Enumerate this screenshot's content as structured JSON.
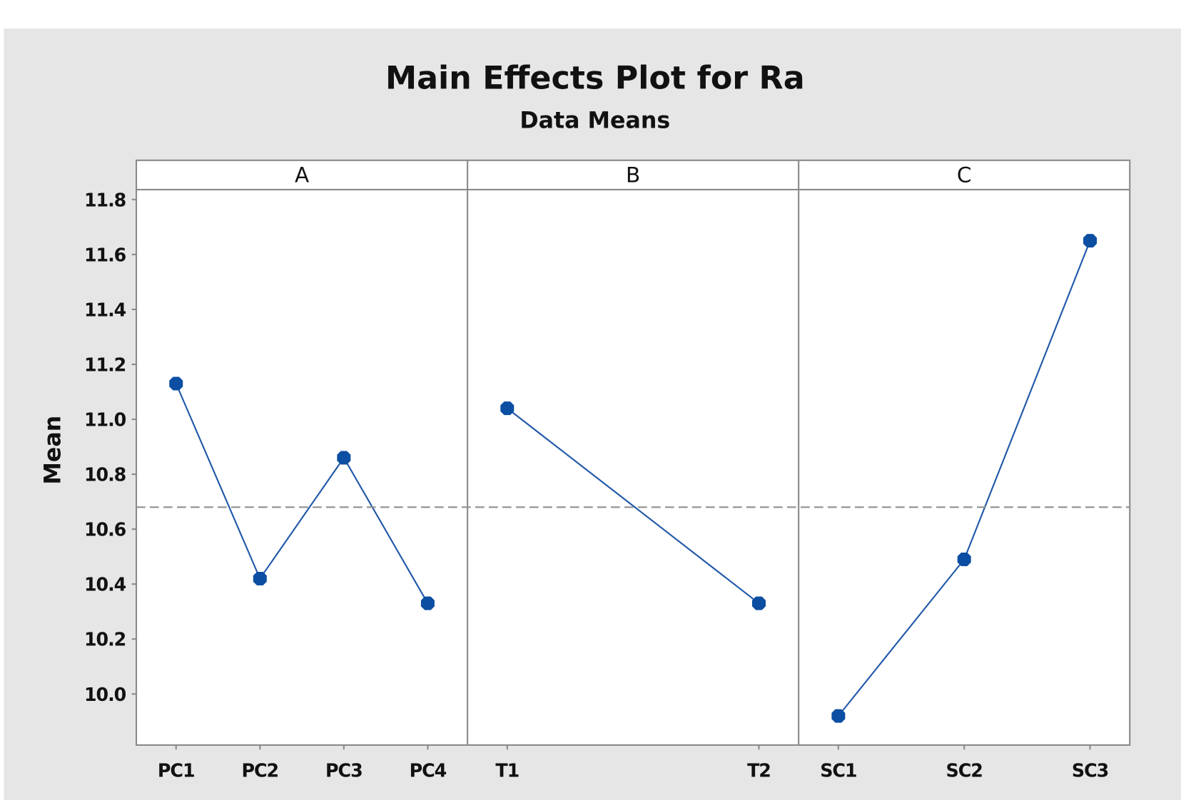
{
  "chart_data": {
    "type": "line",
    "title": "Main Effects Plot for Ra",
    "subtitle": "Data Means",
    "ylabel": "Mean",
    "ylim": [
      9.814,
      11.836
    ],
    "yticks": [
      "10.0",
      "10.2",
      "10.4",
      "10.6",
      "10.8",
      "11.0",
      "11.2",
      "11.4",
      "11.6",
      "11.8"
    ],
    "grand_mean": 10.68,
    "series_color": "#1f57a8",
    "panels": [
      {
        "name": "A",
        "categories": [
          "PC1",
          "PC2",
          "PC3",
          "PC4"
        ],
        "values": [
          11.13,
          10.42,
          10.86,
          10.33
        ]
      },
      {
        "name": "B",
        "categories": [
          "T1",
          "T2"
        ],
        "values": [
          11.04,
          10.33
        ]
      },
      {
        "name": "C",
        "categories": [
          "SC1",
          "SC2",
          "SC3"
        ],
        "values": [
          9.92,
          10.49,
          11.65
        ]
      }
    ]
  }
}
